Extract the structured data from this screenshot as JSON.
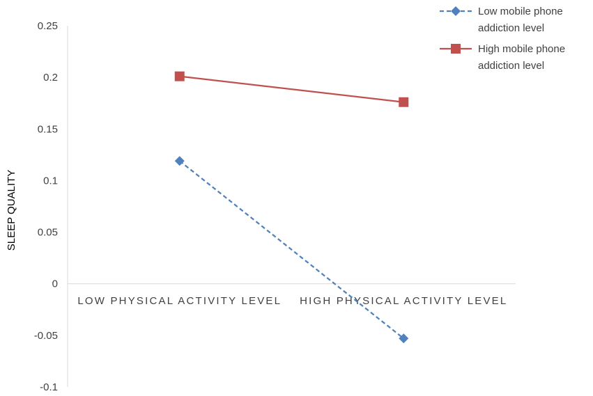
{
  "chart_data": {
    "type": "line",
    "title": "",
    "xlabel": "",
    "ylabel": "SLEEP QUALITY",
    "categories": [
      "LOW PHYSICAL ACTIVITY LEVEL",
      "HIGH PHYSICAL ACTIVITY LEVEL"
    ],
    "ylim": [
      -0.1,
      0.25
    ],
    "yticks": [
      "-0.1",
      "-0.05",
      "0",
      "0.05",
      "0.1",
      "0.15",
      "0.2",
      "0.25"
    ],
    "grid": false,
    "legend_position": "top-right",
    "series": [
      {
        "name": "Low mobile phone addiction level",
        "legend_lines": [
          "Low mobile phone",
          "addiction level"
        ],
        "values": [
          0.119,
          -0.053
        ],
        "color": "#4f81bd",
        "line_style": "dashed",
        "marker": "diamond"
      },
      {
        "name": "High mobile phone addiction level",
        "legend_lines": [
          "High mobile phone",
          "addiction level"
        ],
        "values": [
          0.201,
          0.176
        ],
        "color": "#c0504d",
        "line_style": "solid",
        "marker": "square"
      }
    ]
  }
}
